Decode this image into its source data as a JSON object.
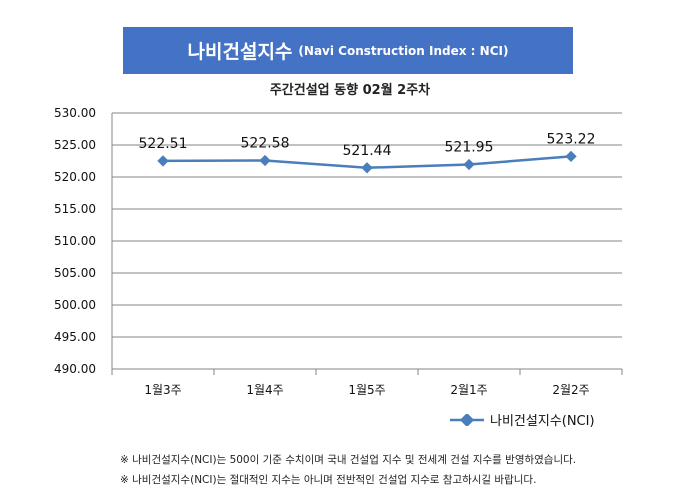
{
  "banner": {
    "main": "나비건설지수",
    "sub": "(Navi Construction Index : NCI)"
  },
  "chart_data": {
    "type": "line",
    "title": "주간건설업 동향 02월 2주차",
    "categories": [
      "1월3주",
      "1월4주",
      "1월5주",
      "2월1주",
      "2월2주"
    ],
    "series": [
      {
        "name": "나비건설지수(NCI)",
        "values": [
          522.51,
          522.58,
          521.44,
          521.95,
          523.22
        ]
      }
    ],
    "data_labels": [
      "522.51",
      "522.58",
      "521.44",
      "521.95",
      "523.22"
    ],
    "y_ticks": [
      "530.00",
      "525.00",
      "520.00",
      "515.00",
      "510.00",
      "505.00",
      "500.00",
      "495.00",
      "490.00"
    ],
    "ylim": [
      490,
      530
    ],
    "grid": true,
    "legend": "bottom-right",
    "line_color": "#4a7ebb"
  },
  "notes": [
    "※ 나비건설지수(NCI)는 500이 기준 수치이며 국내 건설업 지수 및 전세계 건설 지수를 반영하였습니다.",
    "※ 나비건설지수(NCI)는 절대적인 지수는 아니며 전반적인 건설업 지수로 참고하시길 바랍니다."
  ]
}
